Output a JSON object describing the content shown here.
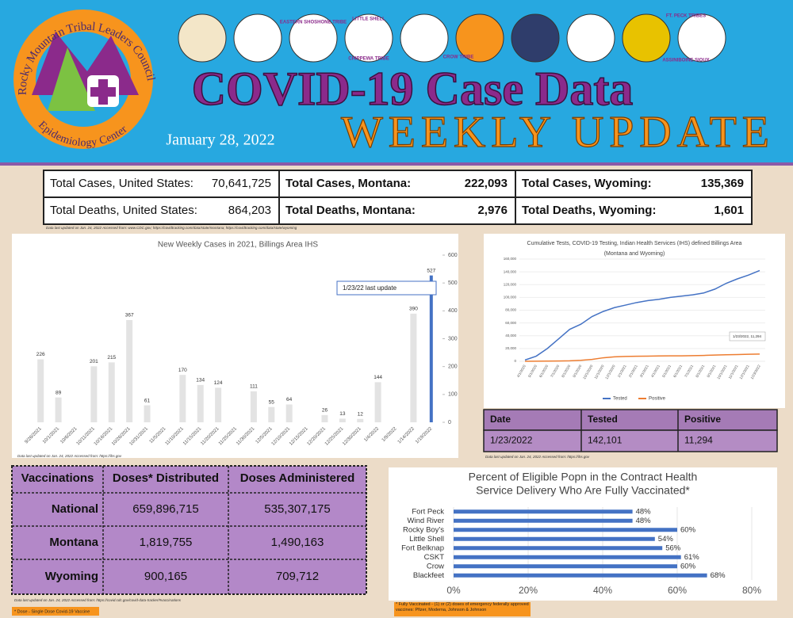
{
  "header": {
    "org_name": "Rocky Mountain Tribal Leaders Council",
    "org_sub": "Epidemiology Center",
    "title": "COVID-19 Case Data",
    "subtitle": "WEEKLY UPDATE",
    "date": "January 28, 2022",
    "logo_texts": [
      "EASTERN SHOSHONE TRIBE",
      "LITTLE SHELL",
      "CHIPPEWA TRIBE",
      "CROW TRIBE",
      "FT. PECK TRIBES",
      "ASSINIBOINE SIOUX"
    ]
  },
  "summary": {
    "rows": [
      [
        {
          "label": "Total Cases, United States:",
          "value": "70,641,725"
        },
        {
          "label": "Total Cases, Montana:",
          "value": "222,093"
        },
        {
          "label": "Total Cases, Wyoming:",
          "value": "135,369"
        }
      ],
      [
        {
          "label": "Total Deaths, United States:",
          "value": "864,203"
        },
        {
          "label": "Total Deaths, Montana:",
          "value": "2,976"
        },
        {
          "label": "Total Deaths, Wyoming:",
          "value": "1,601"
        }
      ]
    ],
    "note": "Data last updated on Jan. 24, 2022 Accessed from: www.CDC.gov; https://covidtracking.com/data/state/montana; https://covidtracking.com/data/state/wyoming"
  },
  "chart_data": [
    {
      "type": "bar",
      "title": "New Weekly Cases in 2021, Billings Area IHS",
      "categories": [
        "9/26/2021",
        "10/1/2021",
        "10/6/2021",
        "10/11/2021",
        "10/16/2021",
        "10/26/2021",
        "10/31/2021",
        "11/5/2021",
        "11/10/2021",
        "11/15/2021",
        "11/20/2021",
        "11/25/2021",
        "11/30/2021",
        "12/5/2021",
        "12/10/2021",
        "12/15/2021",
        "12/20/2021",
        "12/25/2021",
        "12/30/2021",
        "1/4/2022",
        "1/9/2022",
        "1/14/2022",
        "1/19/2022"
      ],
      "values": [
        226,
        89,
        null,
        201,
        215,
        367,
        61,
        null,
        170,
        134,
        124,
        null,
        111,
        55,
        64,
        null,
        26,
        13,
        12,
        144,
        null,
        390,
        527
      ],
      "color": "#e3e3e3",
      "highlight_color": "#4472c4",
      "y2lim": [
        0,
        600
      ],
      "y2ticks": [
        0,
        100,
        200,
        300,
        400,
        500,
        600
      ],
      "annotation": "1/23/22  last update",
      "note": "Data last updated on Jan. 24, 2022 Accessed from: https://ihs.gov"
    },
    {
      "type": "line",
      "title": [
        "Cumulative Tests, COVID-19 Testing, Indian Health Services (IHS) defined Billings Area",
        "(Montana and Wyoming)"
      ],
      "categories": [
        "4/1/2020",
        "5/1/2020",
        "6/1/2020",
        "7/1/2020",
        "8/1/2020",
        "9/1/2020",
        "10/1/2020",
        "11/1/2020",
        "12/1/2020",
        "1/1/2021",
        "2/1/2021",
        "3/1/2021",
        "4/1/2021",
        "5/1/2021",
        "6/1/2021",
        "7/1/2021",
        "8/1/2021",
        "9/1/2021",
        "10/1/2021",
        "11/1/2021",
        "12/1/2021",
        "1/23/2022"
      ],
      "series": [
        {
          "name": "Tested",
          "color": "#4472c4",
          "values": [
            2000,
            8000,
            20000,
            35000,
            50000,
            58000,
            70000,
            78000,
            84000,
            88000,
            92000,
            95000,
            97000,
            100000,
            102000,
            104000,
            107000,
            113000,
            122000,
            129000,
            135000,
            142101
          ]
        },
        {
          "name": "Positive",
          "color": "#ed7d31",
          "values": [
            0,
            100,
            300,
            500,
            800,
            1500,
            3000,
            5500,
            7000,
            7600,
            7900,
            8100,
            8300,
            8500,
            8600,
            8800,
            9200,
            9700,
            10200,
            10600,
            11000,
            11294
          ]
        }
      ],
      "ylim": [
        0,
        160000
      ],
      "yticks": [
        0,
        {
          "value": 20000,
          "label": "20,000"
        },
        {
          "value": 40000,
          "label": "40,000"
        },
        {
          "value": 60000,
          "label": "60,000"
        },
        {
          "value": 80000,
          "label": "80,000"
        },
        {
          "value": 100000,
          "label": "100,000"
        },
        {
          "value": 120000,
          "label": "120,000"
        },
        {
          "value": 140000,
          "label": "140,000"
        },
        {
          "value": 160000,
          "label": "160,000"
        }
      ],
      "annotation": "1/23/2022, 11,294",
      "legend": "bottom"
    },
    {
      "type": "hbar",
      "title": [
        "Percent of Eligible Popn in the Contract Health",
        "Service Delivery Who Are Fully Vaccinated*"
      ],
      "categories": [
        "Fort Peck",
        "Wind River",
        "Rocky Boy's",
        "Little Shell",
        "Fort Belknap",
        "CSKT",
        "Crow",
        "Blackfeet"
      ],
      "values": [
        48,
        48,
        60,
        54,
        56,
        61,
        60,
        68
      ],
      "value_labels": [
        "48%",
        "48%",
        "60%",
        "54%",
        "56%",
        "61%",
        "60%",
        "68%"
      ],
      "color": "#4472c4",
      "xlim": [
        0,
        80
      ],
      "xticks": [
        {
          "value": 0,
          "label": "0%"
        },
        {
          "value": 20,
          "label": "20%"
        },
        {
          "value": 40,
          "label": "40%"
        },
        {
          "value": 60,
          "label": "60%"
        },
        {
          "value": 80,
          "label": "80%"
        }
      ],
      "note": "* Fully Vaccinated - (1) or (2) doses of emergency federally approved vaccines: Pfizer, Moderna, Johnson & Johnson"
    }
  ],
  "tests_table": {
    "header": [
      "Date",
      "Tested",
      "Positive"
    ],
    "rows": [
      [
        "1/23/2022",
        "142,101",
        "11,294"
      ]
    ],
    "note": "Data last updated on Jan. 24, 2022 Accessed from: https://ihs.gov"
  },
  "vaccination_table": {
    "header": [
      "Vaccinations",
      "Doses* Distributed",
      "Doses Administered"
    ],
    "rows": [
      [
        "National",
        "659,896,715",
        "535,307,175"
      ],
      [
        "Montana",
        "1,819,755",
        "1,490,163"
      ],
      [
        "Wyoming",
        "900,165",
        "709,712"
      ]
    ],
    "note": "Data last updated on Jan. 24, 2022 Accessed from: https://covid.cdc.gov/covid-data-tracker/#vaccinations",
    "footnote": "* Dose - Single Dose Covid-19 Vaccine"
  }
}
